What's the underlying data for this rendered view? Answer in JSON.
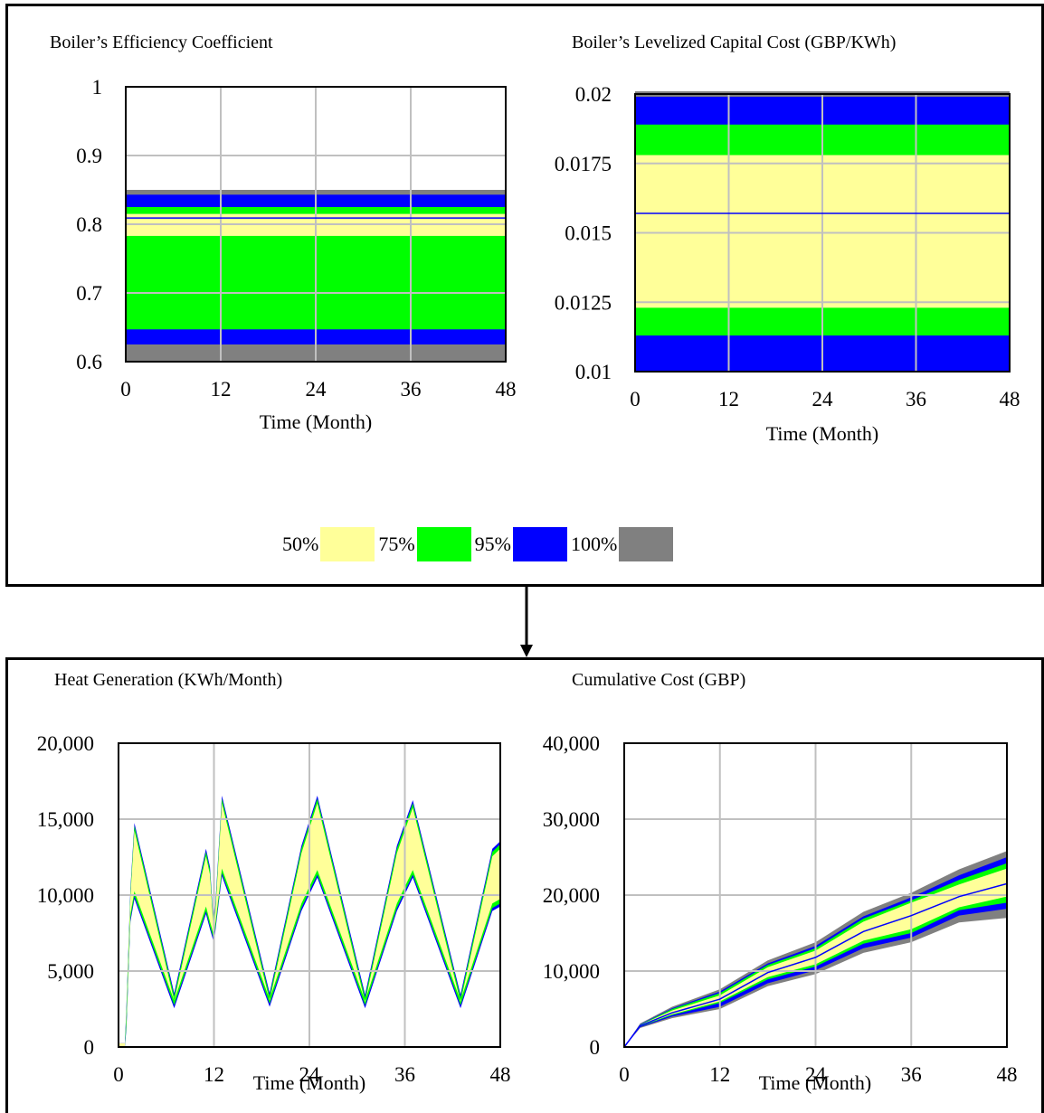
{
  "legend": [
    {
      "label": "50%",
      "color": "#ffff99"
    },
    {
      "label": "75%",
      "color": "#00ff00"
    },
    {
      "label": "95%",
      "color": "#0000ff"
    },
    {
      "label": "100%",
      "color": "#808080"
    }
  ],
  "colors": {
    "band50": "#ffff99",
    "band75": "#00ff00",
    "band95": "#0000ff",
    "band100": "#808080",
    "median": "#0000ff",
    "grid": "#c0c0c0"
  },
  "chart_data": [
    {
      "type": "area",
      "title": "Boiler’s Efficiency Coefficient",
      "xlabel": "Time (Month)",
      "ylabel": "",
      "xlim": [
        0,
        48
      ],
      "ylim": [
        0.6,
        1
      ],
      "xticks": [
        "0",
        "12",
        "24",
        "36",
        "48"
      ],
      "yticks": [
        "0.6",
        "0.7",
        "0.8",
        "0.9",
        "1"
      ],
      "bands": {
        "p0": 0.6,
        "p2_5": 0.625,
        "p12_5": 0.647,
        "p25": 0.783,
        "median": 0.809,
        "p75": 0.815,
        "p87_5": 0.825,
        "p97_5": 0.843,
        "p100": 0.85
      }
    },
    {
      "type": "area",
      "title": "Boiler’s Levelized Capital Cost (GBP/KWh)",
      "xlabel": "Time (Month)",
      "ylabel": "",
      "xlim": [
        0,
        48
      ],
      "ylim": [
        0.01,
        0.02
      ],
      "xticks": [
        "0",
        "12",
        "24",
        "36",
        "48"
      ],
      "yticks": [
        "0.01",
        "0.0125",
        "0.015",
        "0.0175",
        "0.02"
      ],
      "bands": {
        "p0": 0.01,
        "p2_5": 0.01,
        "p12_5": 0.0113,
        "p25": 0.0123,
        "median": 0.0157,
        "p75": 0.0178,
        "p87_5": 0.0189,
        "p97_5": 0.0199,
        "p100": 0.0201
      }
    },
    {
      "type": "area",
      "title": "Heat Generation (KWh/Month)",
      "xlabel": "Time (Month)",
      "ylabel": "",
      "xlim": [
        0,
        48
      ],
      "ylim": [
        0,
        20000
      ],
      "xticks": [
        "0",
        "12",
        "24",
        "36",
        "48"
      ],
      "yticks": [
        "0",
        "5,000",
        "10,000",
        "15,000",
        "20,000"
      ],
      "x": [
        0,
        0.8,
        1,
        1.5,
        2,
        7,
        11,
        11.5,
        12,
        13,
        19,
        23,
        25,
        31,
        35,
        37,
        43,
        47,
        48
      ],
      "low": [
        0,
        0,
        1500,
        8500,
        10000,
        2800,
        9000,
        8000,
        7100,
        11500,
        2900,
        9200,
        11400,
        2800,
        9200,
        11400,
        2800,
        9200,
        9500
      ],
      "high": [
        0,
        0,
        2500,
        10200,
        14500,
        3300,
        12800,
        11600,
        7600,
        16300,
        3300,
        13000,
        16300,
        3200,
        13000,
        16000,
        3200,
        12800,
        13300
      ]
    },
    {
      "type": "area",
      "title": "Cumulative Cost (GBP)",
      "xlabel": "Time (Month)",
      "ylabel": "",
      "xlim": [
        0,
        48
      ],
      "ylim": [
        0,
        40000
      ],
      "xticks": [
        "0",
        "12",
        "24",
        "36",
        "48"
      ],
      "yticks": [
        "0",
        "10,000",
        "20,000",
        "30,000",
        "40,000"
      ],
      "x": [
        0,
        2,
        6,
        12,
        18,
        24,
        30,
        36,
        42,
        48
      ],
      "p0": [
        0,
        2500,
        3800,
        5000,
        8000,
        9600,
        12400,
        13800,
        16400,
        17000
      ],
      "p2_5": [
        0,
        2600,
        4000,
        5300,
        8400,
        10100,
        13000,
        14400,
        17300,
        18200
      ],
      "p12_5": [
        0,
        2700,
        4200,
        5800,
        8900,
        10600,
        13600,
        15000,
        18000,
        19000
      ],
      "p25": [
        0,
        2750,
        4300,
        6000,
        9200,
        10900,
        14000,
        15500,
        18400,
        19800
      ],
      "median": [
        0,
        2800,
        4500,
        6300,
        9800,
        11800,
        15200,
        17300,
        19800,
        21500
      ],
      "p75": [
        0,
        2900,
        4800,
        6800,
        10500,
        12700,
        16500,
        19000,
        21400,
        23500
      ],
      "p87_5": [
        0,
        2950,
        5000,
        7100,
        10800,
        13000,
        16900,
        19300,
        22000,
        24200
      ],
      "p97_5": [
        0,
        3000,
        5100,
        7300,
        11000,
        13300,
        17200,
        19700,
        22600,
        25000
      ],
      "p100": [
        0,
        3100,
        5300,
        7600,
        11400,
        13800,
        17800,
        20300,
        23400,
        25800
      ]
    }
  ]
}
